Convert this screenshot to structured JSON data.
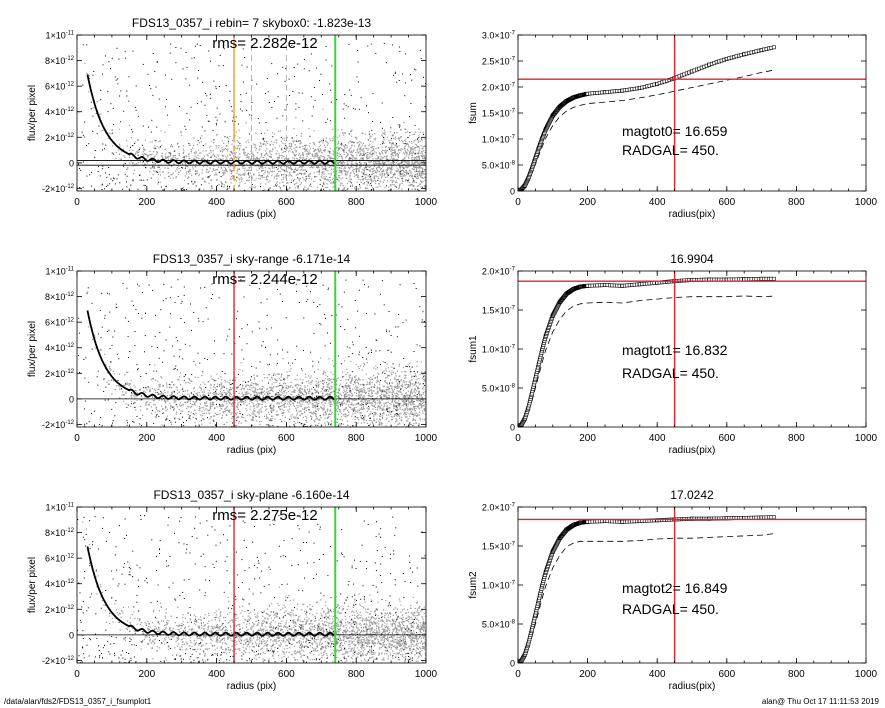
{
  "footer": {
    "left": "/data/alan/fds2/FDS13_0357_i_fsumplot1",
    "right": "alan@  Thu Oct 17 11:11:53 2019"
  },
  "colors": {
    "background": "#ffffff",
    "axis": "#000000",
    "scatter_light": "#9a9a9a",
    "scatter_dark": "#000000",
    "radgal_marker": "#e8232a",
    "green_marker": "#3cd23c",
    "orange_marker": "#f0a030",
    "fsum_hline": "#e8232a"
  },
  "chart_data": [
    {
      "id": "profile-1",
      "type": "scatter",
      "title": "FDS13_0357_i rebin= 7    skybox0: -1.823e-13",
      "annotations": [
        "rms= 2.282e-12"
      ],
      "xlabel": "radius (pix)",
      "ylabel": "flux/per pixel",
      "xlim": [
        0,
        1000
      ],
      "ylim": [
        -2.2e-12,
        1e-11
      ],
      "xticks": [
        0,
        200,
        400,
        600,
        800,
        1000
      ],
      "xtick_labels": [
        "0",
        "200",
        "400",
        "600",
        "800",
        "1000"
      ],
      "yticks": [
        -2e-12,
        0,
        2e-12,
        4e-12,
        6e-12,
        8e-12,
        1e-11
      ],
      "ytick_labels": [
        [
          "-2×10",
          "-12"
        ],
        [
          "0",
          ""
        ],
        [
          "2×10",
          "-12"
        ],
        [
          "4×10",
          "-12"
        ],
        [
          "6×10",
          "-12"
        ],
        [
          "8×10",
          "-12"
        ],
        [
          "1×10",
          "-11"
        ]
      ],
      "profile": {
        "amplitude": 1.25e-11,
        "scale": 50,
        "offset": 5e-14,
        "floor": 0,
        "end": 740
      },
      "hlines": [
        {
          "y": 1.8e-13,
          "color": "#000000"
        },
        {
          "y": -1.8e-13,
          "color": "#000000"
        }
      ],
      "vlines": [
        {
          "x": 450,
          "color": "#f0a030",
          "dash": true,
          "width": 1.4
        },
        {
          "x": 500,
          "color": "#888888",
          "dash": true,
          "width": 0.6
        },
        {
          "x": 600,
          "color": "#888888",
          "dash": true,
          "width": 0.6
        },
        {
          "x": 740,
          "color": "#3cd23c",
          "dash": false,
          "width": 2
        }
      ],
      "dash_segments": [
        {
          "x": 450,
          "y": [
            2e-12,
            9.6e-12
          ]
        }
      ],
      "scatter": {
        "radius_max": 1000,
        "noise_sigma": 1.6e-12,
        "seed": 11
      }
    },
    {
      "id": "fsum-1",
      "type": "line",
      "title": "",
      "annotations": [
        "magtot0=  16.659",
        "RADGAL=    450."
      ],
      "xlabel": "radius(pix)",
      "ylabel": "fsum",
      "xlim": [
        0,
        1000
      ],
      "ylim": [
        0,
        3e-07
      ],
      "xticks": [
        0,
        200,
        400,
        600,
        800,
        1000
      ],
      "xtick_labels": [
        "0",
        "200",
        "400",
        "600",
        "800",
        "1000"
      ],
      "yticks": [
        0,
        5e-08,
        1e-07,
        1.5e-07,
        2e-07,
        2.5e-07,
        3e-07
      ],
      "ytick_labels": [
        [
          "0",
          ""
        ],
        [
          "5.0×10",
          "-8"
        ],
        [
          "1.0×10",
          "-7"
        ],
        [
          "1.5×10",
          "-7"
        ],
        [
          "2.0×10",
          "-7"
        ],
        [
          "2.5×10",
          "-7"
        ],
        [
          "3.0×10",
          "-7"
        ]
      ],
      "curve": {
        "radius": [
          0,
          10,
          20,
          30,
          40,
          50,
          60,
          70,
          80,
          100,
          120,
          140,
          160,
          180,
          200,
          250,
          300,
          350,
          400,
          450,
          500,
          550,
          600,
          650,
          700,
          740
        ],
        "fsum": [
          0,
          3e-09,
          1.1e-08,
          2.5e-08,
          4.3e-08,
          6.3e-08,
          8.3e-08,
          1.02e-07,
          1.19e-07,
          1.45e-07,
          1.62e-07,
          1.73e-07,
          1.8e-07,
          1.84e-07,
          1.87e-07,
          1.9e-07,
          1.93e-07,
          1.98e-07,
          2.06e-07,
          2.17e-07,
          2.3e-07,
          2.43e-07,
          2.54e-07,
          2.63e-07,
          2.71e-07,
          2.77e-07
        ]
      },
      "dashed_curve": {
        "radius": [
          0,
          10,
          20,
          30,
          40,
          50,
          60,
          70,
          80,
          100,
          120,
          140,
          160,
          180,
          200,
          250,
          300,
          350,
          400,
          450,
          500,
          550,
          600,
          650,
          700,
          740
        ],
        "fsum": [
          0,
          2e-09,
          8e-09,
          1.9e-08,
          3.4e-08,
          5.1e-08,
          6.9e-08,
          8.6e-08,
          1.02e-07,
          1.26e-07,
          1.43e-07,
          1.54e-07,
          1.61e-07,
          1.65e-07,
          1.68e-07,
          1.71e-07,
          1.74e-07,
          1.79e-07,
          1.85e-07,
          1.92e-07,
          1.99e-07,
          2.06e-07,
          2.13e-07,
          2.2e-07,
          2.28e-07,
          2.33e-07
        ]
      },
      "radgal": 450,
      "hline": 2.15e-07
    },
    {
      "id": "profile-2",
      "type": "scatter",
      "title": "FDS13_0357_i sky-range -6.171e-14",
      "annotations": [
        "rms= 2.244e-12"
      ],
      "xlabel": "radius (pix)",
      "ylabel": "flux/per pixel",
      "xlim": [
        0,
        1000
      ],
      "ylim": [
        -2.2e-12,
        1e-11
      ],
      "xticks": [
        0,
        200,
        400,
        600,
        800,
        1000
      ],
      "xtick_labels": [
        "0",
        "200",
        "400",
        "600",
        "800",
        "1000"
      ],
      "yticks": [
        -2e-12,
        0,
        2e-12,
        4e-12,
        6e-12,
        8e-12,
        1e-11
      ],
      "ytick_labels": [
        [
          "-2×10",
          "-12"
        ],
        [
          "0",
          ""
        ],
        [
          "2×10",
          "-12"
        ],
        [
          "4×10",
          "-12"
        ],
        [
          "6×10",
          "-12"
        ],
        [
          "8×10",
          "-12"
        ],
        [
          "1×10",
          "-11"
        ]
      ],
      "profile": {
        "amplitude": 1.25e-11,
        "scale": 50,
        "offset": 5e-14,
        "floor": 0,
        "end": 740
      },
      "hlines": [
        {
          "y": 0,
          "color": "#000000"
        }
      ],
      "vlines": [
        {
          "x": 450,
          "color": "#e8232a",
          "dash": false,
          "width": 1.4
        },
        {
          "x": 740,
          "color": "#3cd23c",
          "dash": false,
          "width": 2
        }
      ],
      "dash_segments": [],
      "scatter": {
        "radius_max": 1000,
        "noise_sigma": 1.6e-12,
        "seed": 23
      }
    },
    {
      "id": "fsum-2",
      "type": "line",
      "title": "16.9904",
      "annotations": [
        "magtot1=  16.832",
        "RADGAL=    450."
      ],
      "xlabel": "radius(pix)",
      "ylabel": "fsum1",
      "xlim": [
        0,
        1000
      ],
      "ylim": [
        0,
        2e-07
      ],
      "xticks": [
        0,
        200,
        400,
        600,
        800,
        1000
      ],
      "xtick_labels": [
        "0",
        "200",
        "400",
        "600",
        "800",
        "1000"
      ],
      "yticks": [
        0,
        5e-08,
        1e-07,
        1.5e-07,
        2e-07
      ],
      "ytick_labels": [
        [
          "0",
          ""
        ],
        [
          "5.0×10",
          "-8"
        ],
        [
          "1.0×10",
          "-7"
        ],
        [
          "1.5×10",
          "-7"
        ],
        [
          "2.0×10",
          "-7"
        ]
      ],
      "curve": {
        "radius": [
          0,
          10,
          20,
          30,
          40,
          50,
          60,
          70,
          80,
          100,
          120,
          140,
          160,
          180,
          200,
          250,
          300,
          350,
          400,
          450,
          500,
          550,
          600,
          650,
          700,
          740
        ],
        "fsum": [
          0,
          3e-09,
          1.1e-08,
          2.5e-08,
          4.3e-08,
          6.2e-08,
          8.1e-08,
          1e-07,
          1.17e-07,
          1.43e-07,
          1.6e-07,
          1.71e-07,
          1.77e-07,
          1.8e-07,
          1.81e-07,
          1.82e-07,
          1.81e-07,
          1.83e-07,
          1.85e-07,
          1.87e-07,
          1.885e-07,
          1.89e-07,
          1.89e-07,
          1.895e-07,
          1.9e-07,
          1.9e-07
        ]
      },
      "dashed_curve": {
        "radius": [
          0,
          10,
          20,
          30,
          40,
          50,
          60,
          70,
          80,
          100,
          120,
          140,
          160,
          180,
          200,
          250,
          300,
          350,
          400,
          450,
          500,
          550,
          600,
          650,
          700,
          740
        ],
        "fsum": [
          0,
          2e-09,
          8e-09,
          1.9e-08,
          3.3e-08,
          5e-08,
          6.7e-08,
          8.4e-08,
          9.9e-08,
          1.22e-07,
          1.38e-07,
          1.49e-07,
          1.55e-07,
          1.58e-07,
          1.59e-07,
          1.6e-07,
          1.59e-07,
          1.62e-07,
          1.64e-07,
          1.66e-07,
          1.67e-07,
          1.67e-07,
          1.67e-07,
          1.68e-07,
          1.67e-07,
          1.68e-07
        ]
      },
      "radgal": 450,
      "hline": 1.87e-07
    },
    {
      "id": "profile-3",
      "type": "scatter",
      "title": "FDS13_0357_i sky-plane -6.160e-14",
      "annotations": [
        "rms= 2.275e-12"
      ],
      "xlabel": "radius (pix)",
      "ylabel": "flux/per pixel",
      "xlim": [
        0,
        1000
      ],
      "ylim": [
        -2.2e-12,
        1e-11
      ],
      "xticks": [
        0,
        200,
        400,
        600,
        800,
        1000
      ],
      "xtick_labels": [
        "0",
        "200",
        "400",
        "600",
        "800",
        "1000"
      ],
      "yticks": [
        -2e-12,
        0,
        2e-12,
        4e-12,
        6e-12,
        8e-12,
        1e-11
      ],
      "ytick_labels": [
        [
          "-2×10",
          "-12"
        ],
        [
          "0",
          ""
        ],
        [
          "2×10",
          "-12"
        ],
        [
          "4×10",
          "-12"
        ],
        [
          "6×10",
          "-12"
        ],
        [
          "8×10",
          "-12"
        ],
        [
          "1×10",
          "-11"
        ]
      ],
      "profile": {
        "amplitude": 1.25e-11,
        "scale": 50,
        "offset": 5e-14,
        "floor": 0,
        "end": 740
      },
      "hlines": [
        {
          "y": 0,
          "color": "#000000"
        }
      ],
      "vlines": [
        {
          "x": 450,
          "color": "#e8232a",
          "dash": false,
          "width": 1.4
        },
        {
          "x": 740,
          "color": "#3cd23c",
          "dash": false,
          "width": 2
        }
      ],
      "dash_segments": [],
      "scatter": {
        "radius_max": 1000,
        "noise_sigma": 1.6e-12,
        "seed": 37
      }
    },
    {
      "id": "fsum-3",
      "type": "line",
      "title": "17.0242",
      "annotations": [
        "magtot2=  16.849",
        "RADGAL=    450."
      ],
      "xlabel": "radius(pix)",
      "ylabel": "fsum2",
      "xlim": [
        0,
        1000
      ],
      "ylim": [
        0,
        2e-07
      ],
      "xticks": [
        0,
        200,
        400,
        600,
        800,
        1000
      ],
      "xtick_labels": [
        "0",
        "200",
        "400",
        "600",
        "800",
        "1000"
      ],
      "yticks": [
        0,
        5e-08,
        1e-07,
        1.5e-07,
        2e-07
      ],
      "ytick_labels": [
        [
          "0",
          ""
        ],
        [
          "5.0×10",
          "-8"
        ],
        [
          "1.0×10",
          "-7"
        ],
        [
          "1.5×10",
          "-7"
        ],
        [
          "2.0×10",
          "-7"
        ]
      ],
      "curve": {
        "radius": [
          0,
          10,
          20,
          30,
          40,
          50,
          60,
          70,
          80,
          100,
          120,
          140,
          160,
          180,
          200,
          250,
          300,
          350,
          400,
          450,
          500,
          550,
          600,
          650,
          700,
          740
        ],
        "fsum": [
          0,
          3e-09,
          1.1e-08,
          2.5e-08,
          4.3e-08,
          6.2e-08,
          8.1e-08,
          1e-07,
          1.17e-07,
          1.43e-07,
          1.6e-07,
          1.71e-07,
          1.77e-07,
          1.8e-07,
          1.81e-07,
          1.82e-07,
          1.81e-07,
          1.82e-07,
          1.83e-07,
          1.84e-07,
          1.85e-07,
          1.85e-07,
          1.855e-07,
          1.86e-07,
          1.865e-07,
          1.87e-07
        ]
      },
      "dashed_curve": {
        "radius": [
          0,
          10,
          20,
          30,
          40,
          50,
          60,
          70,
          80,
          100,
          120,
          140,
          160,
          180,
          200,
          250,
          300,
          350,
          400,
          450,
          500,
          550,
          600,
          650,
          700,
          740
        ],
        "fsum": [
          0,
          2e-09,
          8e-09,
          1.9e-08,
          3.3e-08,
          5e-08,
          6.7e-08,
          8.4e-08,
          9.9e-08,
          1.22e-07,
          1.38e-07,
          1.49e-07,
          1.54e-07,
          1.56e-07,
          1.56e-07,
          1.56e-07,
          1.56e-07,
          1.57e-07,
          1.59e-07,
          1.6e-07,
          1.6e-07,
          1.61e-07,
          1.62e-07,
          1.63e-07,
          1.64e-07,
          1.66e-07
        ]
      },
      "radgal": 450,
      "hline": 1.84e-07
    }
  ]
}
